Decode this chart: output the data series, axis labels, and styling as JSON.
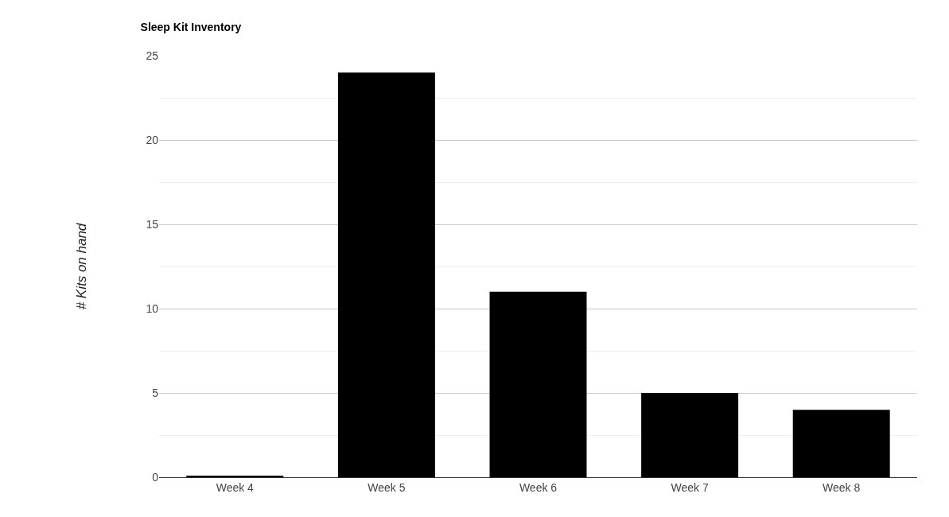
{
  "chart_data": {
    "type": "bar",
    "title": "Sleep Kit Inventory",
    "ylabel": "# Kits on hand",
    "categories": [
      "Week 4",
      "Week 5",
      "Week 6",
      "Week 7",
      "Week 8"
    ],
    "values": [
      0.1,
      24,
      11,
      5,
      4
    ],
    "color": "#000000",
    "ylim": [
      0,
      25
    ],
    "yticks": [
      0,
      5,
      10,
      15,
      20,
      25
    ],
    "grid": "y",
    "legend": false
  }
}
